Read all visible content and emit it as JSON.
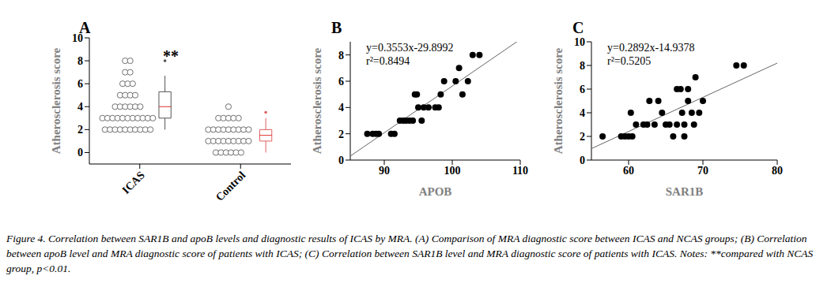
{
  "caption": "Figure 4. Correlation between SAR1B and apoB levels and diagnostic results of ICAS by MRA. (A) Comparison of MRA diagnostic score between ICAS and NCAS groups; (B) Correlation between apoB level and MRA diagnostic score of patients with ICAS; (C) Correlation between SAR1B level and MRA diagnostic score of patients with ICAS. Notes: **compared with NCAS group, p<0.01.",
  "chart_data": [
    {
      "type": "strip_box",
      "panel": "A",
      "ylabel": "Atherosclerosis score",
      "categories": [
        "ICAS",
        "Control"
      ],
      "ylim": [
        -1,
        10
      ],
      "yticks": [
        0,
        2,
        4,
        6,
        8,
        10
      ],
      "annotation": "**",
      "colors": [
        "#707070",
        "#707070"
      ],
      "marker": "open circle",
      "points": [
        [
          2,
          2,
          2,
          2,
          2,
          2,
          2,
          2,
          2,
          2,
          3,
          3,
          3,
          3,
          3,
          3,
          3,
          3,
          3,
          3,
          3,
          4,
          4,
          4,
          4,
          4,
          4,
          5,
          5,
          5,
          5,
          6,
          6,
          6,
          7,
          7,
          8,
          8
        ],
        [
          0,
          0,
          0,
          0,
          0,
          0,
          1,
          1,
          1,
          1,
          1,
          1,
          1,
          1,
          1,
          2,
          2,
          2,
          2,
          2,
          2,
          2,
          2,
          2,
          3,
          3,
          3,
          3,
          3,
          4
        ]
      ],
      "boxes": [
        {
          "min": 2,
          "q1": 3,
          "median": 4,
          "q3": 5.3,
          "max": 6.7,
          "outliers": [
            8
          ]
        },
        {
          "min": 0,
          "q1": 1,
          "median": 1.5,
          "q3": 2,
          "max": 3,
          "outliers": [
            3.5
          ]
        }
      ],
      "box_colors": [
        "#555555",
        "#e06060"
      ],
      "median_color": "#e03030"
    },
    {
      "type": "scatter",
      "panel": "B",
      "xlabel": "APOB",
      "ylabel": "Atherosclerosis score",
      "annotations": [
        "y=0.3553x-29.8992",
        "r²=0.8494"
      ],
      "fit": {
        "slope": 0.3553,
        "intercept": -29.8992
      },
      "x": [
        87.5,
        88.3,
        88.8,
        89.2,
        91,
        91.5,
        92.3,
        92.8,
        93.2,
        93.7,
        94.2,
        94.5,
        94.8,
        95,
        95.5,
        95.8,
        96.5,
        97.5,
        98,
        98.3,
        98.8,
        100.5,
        101,
        101.5,
        102.3,
        103,
        104
      ],
      "values": [
        2,
        2,
        2,
        2,
        2,
        2,
        3,
        3,
        3,
        3,
        3,
        5,
        5,
        4,
        3,
        4,
        4,
        4,
        4,
        5,
        6,
        6,
        7,
        5,
        6,
        8,
        8
      ],
      "color": "#000000",
      "line_color": "#666666",
      "xlim": [
        85,
        110
      ],
      "xticks": [
        90,
        100,
        110
      ],
      "ylim": [
        0,
        9
      ],
      "yticks": [
        0,
        2,
        4,
        6,
        8
      ]
    },
    {
      "type": "scatter",
      "panel": "C",
      "xlabel": "SAR1B",
      "ylabel": "Atherosclerosis score",
      "annotations": [
        "y=0.2892x-14.9378",
        "r²=0.5205"
      ],
      "fit": {
        "slope": 0.2892,
        "intercept": -14.9378
      },
      "x": [
        56.5,
        59,
        59.5,
        60,
        60.3,
        60.5,
        61,
        62,
        62.5,
        62.8,
        63.5,
        64,
        64.5,
        65,
        65.5,
        66,
        66.5,
        66.5,
        67,
        67.2,
        67.5,
        67.5,
        68,
        68,
        68.5,
        68.8,
        69,
        69.5,
        70,
        74.5,
        75.5
      ],
      "values": [
        2,
        2,
        2,
        2,
        4,
        2,
        3,
        3,
        3,
        5,
        3,
        5,
        4,
        3,
        3,
        2,
        3,
        6,
        6,
        4,
        2,
        3,
        6,
        5,
        4,
        3,
        7,
        4,
        5,
        8,
        8
      ],
      "color": "#000000",
      "line_color": "#666666",
      "xlim": [
        55,
        80
      ],
      "xticks": [
        60,
        70,
        80
      ],
      "ylim": [
        0,
        10
      ],
      "yticks": [
        0,
        2,
        4,
        6,
        8,
        10
      ]
    }
  ]
}
